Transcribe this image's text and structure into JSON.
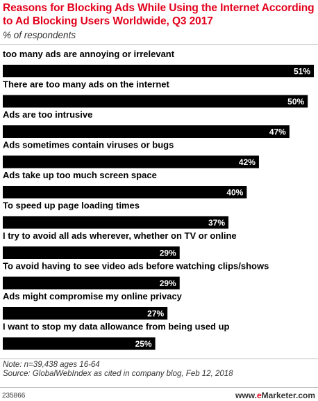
{
  "header": {
    "title": "Reasons for Blocking Ads While Using the Internet According to Ad Blocking Users Worldwide, Q3 2017",
    "subtitle": "% of respondents"
  },
  "colors": {
    "title": "#e3001b",
    "bar": "#000000",
    "value_label": "#ffffff",
    "brand_accent": "#e3001b"
  },
  "chart_data": {
    "type": "bar",
    "orientation": "horizontal",
    "title": "Reasons for Blocking Ads While Using the Internet According to Ad Blocking Users Worldwide, Q3 2017",
    "subtitle": "% of respondents",
    "categories": [
      "too many ads are annoying or irrelevant",
      "There are too many ads on the internet",
      "Ads are too intrusive",
      "Ads sometimes contain viruses or bugs",
      "Ads take up too much screen space",
      "To speed up page loading times",
      "I try to avoid all ads wherever, whether on TV or online",
      "To avoid having to see video ads before watching clips/shows",
      "Ads might compromise my online privacy",
      "I want to stop my data allowance from being used up"
    ],
    "values": [
      51,
      50,
      47,
      42,
      40,
      37,
      29,
      29,
      27,
      25
    ],
    "value_labels": [
      "51%",
      "50%",
      "47%",
      "42%",
      "40%",
      "37%",
      "29%",
      "29%",
      "27%",
      "25%"
    ],
    "grid": false,
    "legend": "none"
  },
  "footer": {
    "note": "Note: n=39,438 ages 16-64",
    "source": "Source: GlobalWebIndex as cited in company blog, Feb 12, 2018",
    "chart_id": "235866",
    "brand_prefix": "www.",
    "brand_accent": "e",
    "brand_suffix": "Marketer.com"
  }
}
